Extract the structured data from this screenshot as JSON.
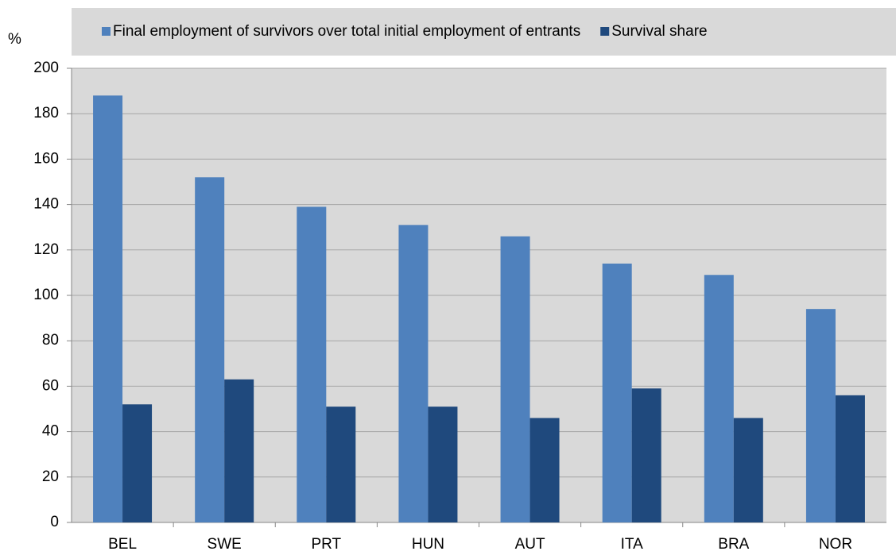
{
  "chart_data": {
    "type": "bar",
    "y_label": "%",
    "categories": [
      "BEL",
      "SWE",
      "PRT",
      "HUN",
      "AUT",
      "ITA",
      "BRA",
      "NOR"
    ],
    "series": [
      {
        "name": "Final employment of survivors over total initial employment of entrants",
        "color": "#4f81bd",
        "values": [
          188,
          152,
          139,
          131,
          126,
          114,
          109,
          94
        ]
      },
      {
        "name": "Survival share",
        "color": "#1f497d",
        "values": [
          52,
          63,
          51,
          51,
          46,
          59,
          46,
          56
        ]
      }
    ],
    "ylim": [
      0,
      200
    ],
    "yticks": [
      0,
      20,
      40,
      60,
      80,
      100,
      120,
      140,
      160,
      180,
      200
    ],
    "grid": true,
    "legend": "top"
  }
}
